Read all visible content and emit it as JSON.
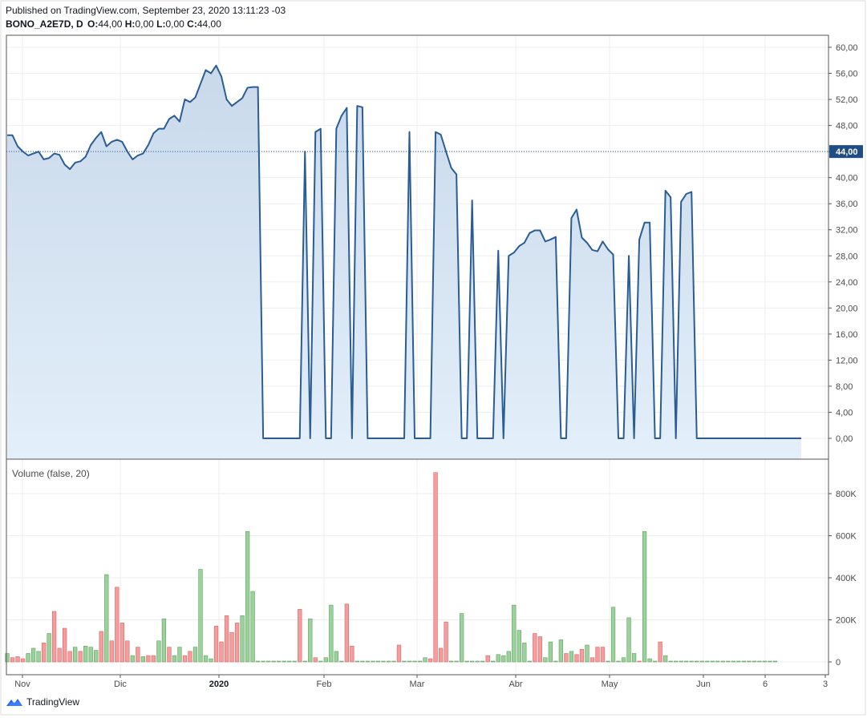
{
  "header": {
    "published": "Published on TradingView.com, September 23, 2020 13:11:23 -03",
    "symbol": "BONO_A2E7D, D",
    "o_label": "O:",
    "o_value": "44,00",
    "h_label": "H:",
    "h_value": "0,00",
    "l_label": "L:",
    "l_value": "0,00",
    "c_label": "C:",
    "c_value": "44,00"
  },
  "footer": {
    "brand": "TradingView",
    "logo_icon": "tradingview-logo-icon"
  },
  "colors": {
    "line": "#2a5d94",
    "area_top": "#c9d9ea",
    "area_bottom": "#e3effa",
    "up": "#9bd19b",
    "up_border": "#5fa05f",
    "down": "#f59c9c",
    "down_border": "#d96565",
    "grid": "#eeeeee",
    "last_price_bg": "#1f4e84"
  },
  "chart_data": [
    {
      "type": "area",
      "title": "BONO_A2E7D, D",
      "ylim": [
        -4,
        62
      ],
      "y_ticks": [
        "60,00",
        "56,00",
        "52,00",
        "48,00",
        "44,00",
        "40,00",
        "36,00",
        "32,00",
        "28,00",
        "24,00",
        "20,00",
        "16,00",
        "12,00",
        "8,00",
        "4,00",
        "0,00"
      ],
      "last_price_label": "44,00",
      "last_price": 44,
      "x_labels": [
        "Nov",
        "Dic",
        "2020",
        "Feb",
        "Mar",
        "Abr",
        "May",
        "Jun",
        "6",
        "3"
      ],
      "series": [
        {
          "values": [
            46.5,
            46.5,
            44.8,
            44,
            43.4,
            43.7,
            44,
            42.8,
            43,
            43.7,
            43.5,
            42,
            41.3,
            42.3,
            42.5,
            43.2,
            45,
            46.1,
            47,
            44.8,
            45.5,
            45.8,
            45.5,
            44,
            42.8,
            43.4,
            43.7,
            45,
            46.8,
            47.5,
            47.5,
            49,
            49.5,
            48.6,
            52,
            51.6,
            52.3,
            54.4,
            56.5,
            56,
            57.2,
            55.5,
            52,
            51,
            51.6,
            52.2,
            53.8,
            53.9,
            53.9,
            0,
            0,
            0,
            0,
            0,
            0,
            0,
            0,
            44,
            0,
            47,
            47.5,
            0,
            0,
            47.5,
            49.5,
            50.7,
            0,
            51,
            50.8,
            0,
            0,
            0,
            0,
            0,
            0,
            0,
            0,
            47,
            0,
            0,
            0,
            0,
            47,
            46.6,
            44,
            41.5,
            40.5,
            0,
            0,
            36.5,
            0,
            0,
            0,
            0,
            28.8,
            0,
            28,
            28.5,
            29.5,
            30,
            31.5,
            31.9,
            31.9,
            30.2,
            30.5,
            30.9,
            0,
            0,
            33.8,
            35.1,
            30.8,
            30,
            28.9,
            28.7,
            30.2,
            29,
            28.2,
            0,
            0,
            28,
            0,
            30.5,
            33.1,
            33.1,
            0,
            0,
            38,
            37,
            0,
            36.3,
            37.5,
            37.8,
            0,
            0,
            0,
            0,
            0,
            0,
            0,
            0,
            0,
            0,
            0,
            0,
            0,
            0,
            0,
            0,
            0,
            0,
            0,
            0,
            0
          ]
        }
      ]
    },
    {
      "type": "bar",
      "title": "Volume (false, 20)",
      "ylim": [
        0,
        930000
      ],
      "y_ticks": [
        "800K",
        "600K",
        "400K",
        "200K",
        "0"
      ],
      "series": [
        {
          "values": [
            40000,
            20000,
            25000,
            15000,
            40000,
            65000,
            50000,
            90000,
            135000,
            240000,
            65000,
            160000,
            50000,
            70000,
            50000,
            75000,
            70000,
            55000,
            145000,
            415000,
            100000,
            355000,
            185000,
            100000,
            30000,
            70000,
            25000,
            30000,
            30000,
            100000,
            205000,
            70000,
            30000,
            70000,
            30000,
            50000,
            70000,
            440000,
            30000,
            15000,
            170000,
            95000,
            220000,
            140000,
            185000,
            220000,
            620000,
            335000,
            0,
            0,
            0,
            0,
            0,
            0,
            0,
            0,
            250000,
            0,
            205000,
            20000,
            0,
            20000,
            270000,
            50000,
            0,
            275000,
            75000,
            0,
            0,
            0,
            0,
            0,
            0,
            0,
            0,
            80000,
            0,
            0,
            0,
            0,
            20000,
            15000,
            900000,
            65000,
            190000,
            0,
            0,
            230000,
            0,
            0,
            0,
            0,
            30000,
            0,
            35000,
            30000,
            50000,
            270000,
            150000,
            90000,
            0,
            135000,
            120000,
            20000,
            95000,
            0,
            105000,
            40000,
            50000,
            35000,
            60000,
            80000,
            20000,
            70000,
            70000,
            0,
            260000,
            0,
            20000,
            210000,
            40000,
            0,
            620000,
            15000,
            0,
            95000,
            30000,
            0,
            0,
            0,
            0,
            0,
            0,
            0,
            0,
            0,
            0,
            0,
            0,
            0,
            0,
            0,
            0,
            0,
            0,
            0,
            0,
            0
          ],
          "up": [
            1,
            0,
            0,
            0,
            1,
            1,
            1,
            0,
            1,
            0,
            0,
            0,
            0,
            1,
            0,
            1,
            1,
            1,
            0,
            1,
            0,
            0,
            0,
            0,
            1,
            0,
            1,
            0,
            0,
            1,
            1,
            0,
            1,
            1,
            0,
            0,
            1,
            1,
            1,
            1,
            0,
            0,
            0,
            0,
            0,
            1,
            1,
            1,
            1,
            1,
            1,
            1,
            1,
            1,
            1,
            1,
            0,
            1,
            1,
            0,
            1,
            1,
            1,
            1,
            1,
            0,
            0,
            1,
            1,
            1,
            1,
            1,
            1,
            1,
            1,
            0,
            1,
            1,
            1,
            1,
            1,
            0,
            0,
            0,
            0,
            1,
            1,
            1,
            1,
            1,
            1,
            1,
            0,
            1,
            1,
            1,
            1,
            1,
            1,
            1,
            1,
            0,
            0,
            1,
            1,
            1,
            1,
            0,
            1,
            0,
            0,
            1,
            0,
            0,
            0,
            1,
            1,
            1,
            1,
            1,
            1,
            0,
            1,
            1,
            1,
            0,
            1,
            1,
            1,
            1,
            1,
            1,
            1,
            1,
            1,
            1,
            1,
            1,
            1,
            1,
            1,
            1,
            1,
            1,
            1,
            1,
            1,
            1,
            1,
            1,
            1,
            1,
            1
          ]
        }
      ]
    }
  ]
}
